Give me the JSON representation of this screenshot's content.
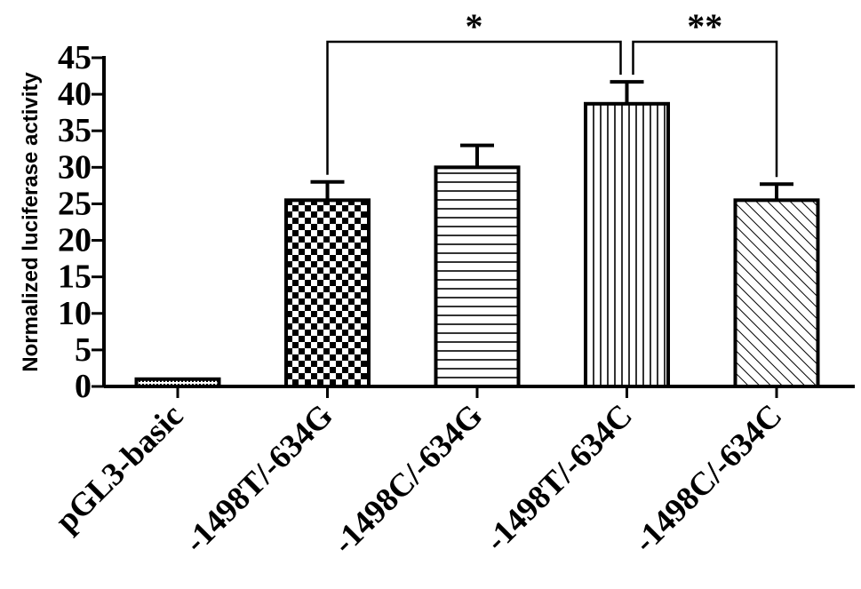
{
  "chart_data": {
    "type": "bar",
    "title": "",
    "xlabel": "",
    "ylabel": "Normalized luciferase activity",
    "ylim": [
      0,
      45
    ],
    "yticks": [
      "0",
      "5",
      "10",
      "15",
      "20",
      "25",
      "30",
      "35",
      "40",
      "45"
    ],
    "categories": [
      "pGL3-basic",
      "-1498T/-634G",
      "-1498C/-634G",
      "-1498T/-634C",
      "-1498C/-634C"
    ],
    "values": [
      1,
      25.5,
      30,
      38.7,
      25.5
    ],
    "error_upper": [
      0,
      2.5,
      3,
      3,
      2.2
    ],
    "patterns": [
      "dots",
      "checker",
      "horizontal",
      "vertical",
      "diagonal"
    ],
    "grid": false,
    "legend": "none",
    "significance": [
      {
        "from": "-1498T/-634G",
        "to": "-1498T/-634C",
        "label": "*"
      },
      {
        "from": "-1498T/-634C",
        "to": "-1498C/-634C",
        "label": "**"
      }
    ]
  }
}
